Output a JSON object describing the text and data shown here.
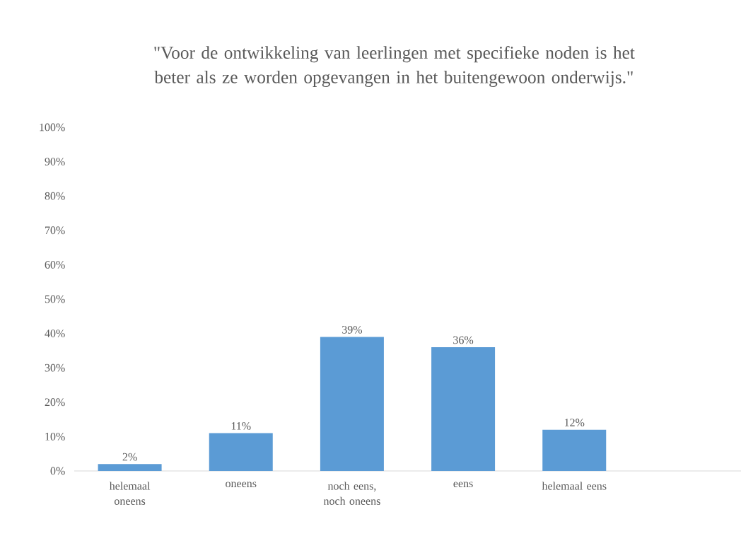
{
  "chart_data": {
    "type": "bar",
    "title": "\"Voor de ontwikkeling van leerlingen met specifieke noden is het beter als ze worden opgevangen in het buitengewoon onderwijs.\"",
    "categories": [
      "helemaal oneens",
      "oneens",
      "noch eens, noch oneens",
      "eens",
      "helemaal eens",
      null
    ],
    "values": [
      2,
      11,
      39,
      36,
      12,
      null
    ],
    "value_labels": [
      "2%",
      "11%",
      "39%",
      "36%",
      "12%",
      null
    ],
    "color": "#5b9bd5",
    "ylim": [
      0,
      100
    ],
    "yticks": [
      {
        "value": 0,
        "label": "0%"
      },
      {
        "value": 10,
        "label": "10%"
      },
      {
        "value": 20,
        "label": "20%"
      },
      {
        "value": 30,
        "label": "30%"
      },
      {
        "value": 40,
        "label": "40%"
      },
      {
        "value": 50,
        "label": "50%"
      },
      {
        "value": 60,
        "label": "60%"
      },
      {
        "value": 70,
        "label": "70%"
      },
      {
        "value": 80,
        "label": "80%"
      },
      {
        "value": 90,
        "label": "90%"
      },
      {
        "value": 100,
        "label": "100%"
      }
    ]
  }
}
